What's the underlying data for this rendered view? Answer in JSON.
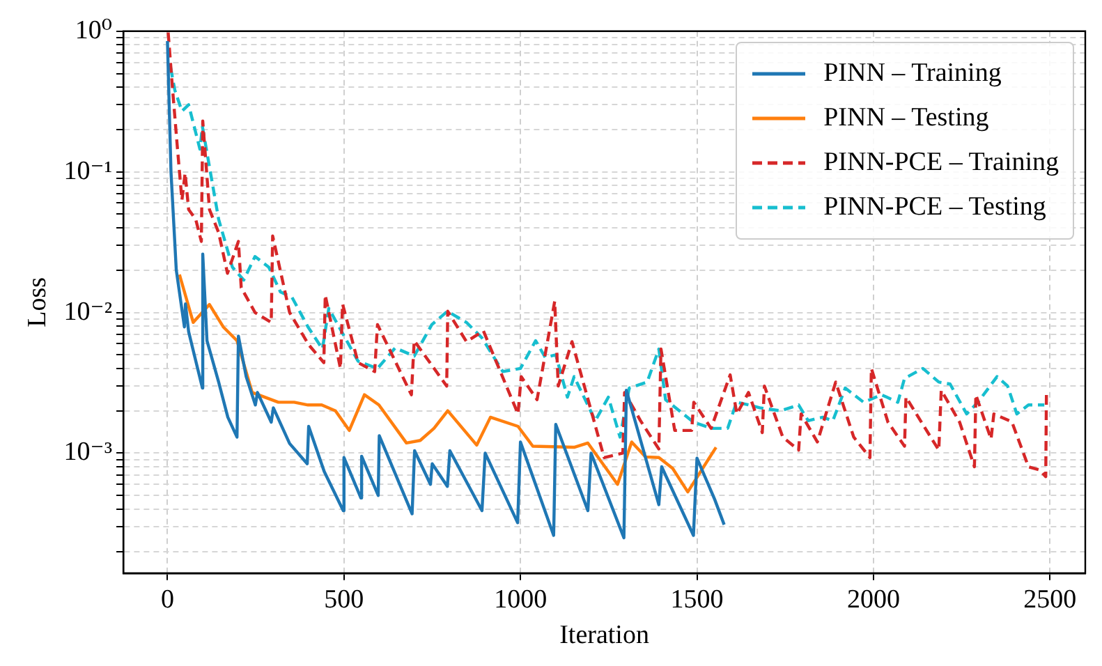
{
  "chart_data": {
    "type": "line",
    "xlabel": "Iteration",
    "ylabel": "Loss",
    "log": "y",
    "grid": true,
    "legend": "top right",
    "xlim": [
      -125,
      2600
    ],
    "xticks": [
      0,
      500,
      1000,
      1500,
      2000,
      2500
    ],
    "ylim": [
      0.00014,
      1
    ],
    "yticks": [
      {
        "value": 1,
        "label": "10⁰"
      },
      {
        "value": 0.1,
        "label": "10⁻¹"
      },
      {
        "value": 0.01,
        "label": "10⁻²"
      },
      {
        "value": 0.001,
        "label": "10⁻³"
      },
      {
        "value": 0.9,
        "label": null
      },
      {
        "value": 0.8,
        "label": null
      },
      {
        "value": 0.7,
        "label": null
      },
      {
        "value": 0.6,
        "label": null
      },
      {
        "value": 0.5,
        "label": null
      },
      {
        "value": 0.4,
        "label": null
      },
      {
        "value": 0.3,
        "label": null
      },
      {
        "value": 0.2,
        "label": null
      },
      {
        "value": 0.09,
        "label": null
      },
      {
        "value": 0.08,
        "label": null
      },
      {
        "value": 0.07,
        "label": null
      },
      {
        "value": 0.06,
        "label": null
      },
      {
        "value": 0.05,
        "label": null
      },
      {
        "value": 0.04,
        "label": null
      },
      {
        "value": 0.03,
        "label": null
      },
      {
        "value": 0.02,
        "label": null
      },
      {
        "value": 0.009,
        "label": null
      },
      {
        "value": 0.008,
        "label": null
      },
      {
        "value": 0.007,
        "label": null
      },
      {
        "value": 0.006,
        "label": null
      },
      {
        "value": 0.005,
        "label": null
      },
      {
        "value": 0.004,
        "label": null
      },
      {
        "value": 0.003,
        "label": null
      },
      {
        "value": 0.002,
        "label": null
      },
      {
        "value": 0.0009,
        "label": null
      },
      {
        "value": 0.0008,
        "label": null
      },
      {
        "value": 0.0007,
        "label": null
      },
      {
        "value": 0.0006,
        "label": null
      },
      {
        "value": 0.0005,
        "label": null
      },
      {
        "value": 0.0004,
        "label": null
      },
      {
        "value": 0.0003,
        "label": null
      },
      {
        "value": 0.0002,
        "label": null
      }
    ],
    "series": [
      {
        "name": "PINN – Training",
        "color": "#1f77b4",
        "line_style": "solid",
        "x": [
          0,
          10,
          25,
          48,
          51,
          60,
          99,
          100,
          112,
          145,
          171,
          197,
          201,
          223,
          249,
          255,
          294,
          300,
          346,
          396,
          400,
          444,
          498,
          500,
          548,
          550,
          597,
          600,
          693,
          700,
          745,
          750,
          793,
          800,
          891,
          900,
          992,
          1000,
          1094,
          1100,
          1191,
          1200,
          1293,
          1300,
          1392,
          1400,
          1490,
          1500,
          1550,
          1577
        ],
        "values": [
          0.85,
          0.1,
          0.02,
          0.0079,
          0.0115,
          0.0073,
          0.0029,
          0.026,
          0.0063,
          0.0032,
          0.0018,
          0.0013,
          0.0068,
          0.0035,
          0.0022,
          0.0027,
          0.00166,
          0.0021,
          0.00117,
          0.00084,
          0.00155,
          0.00074,
          0.00039,
          0.00093,
          0.00048,
          0.00095,
          0.0005,
          0.00133,
          0.00037,
          0.00104,
          0.0006,
          0.00084,
          0.00058,
          0.00104,
          0.00039,
          0.001,
          0.00032,
          0.0012,
          0.00026,
          0.0016,
          0.00039,
          0.001,
          0.00025,
          0.0028,
          0.00043,
          0.0008,
          0.00026,
          0.00092,
          0.00047,
          0.00031
        ]
      },
      {
        "name": "PINN – Testing",
        "color": "#ff7f0e",
        "line_style": "solid",
        "x": [
          34,
          73,
          119,
          158,
          197,
          240,
          314,
          359,
          398,
          437,
          476,
          515,
          558,
          599,
          677,
          716,
          755,
          794,
          876,
          915,
          993,
          1035,
          1152,
          1191,
          1275,
          1315,
          1354,
          1392,
          1431,
          1474,
          1554
        ],
        "values": [
          0.0186,
          0.0085,
          0.0114,
          0.0079,
          0.0063,
          0.0027,
          0.0023,
          0.0023,
          0.0022,
          0.0022,
          0.002,
          0.00145,
          0.0026,
          0.0022,
          0.00118,
          0.00123,
          0.0015,
          0.002,
          0.00114,
          0.0018,
          0.00155,
          0.00112,
          0.0011,
          0.00118,
          0.0006,
          0.0012,
          0.00094,
          0.00093,
          0.00078,
          0.00053,
          0.0011
        ]
      },
      {
        "name": "PINN-PCE – Training",
        "color": "#d62728",
        "line_style": "dashed",
        "x": [
          2,
          14,
          28,
          41,
          50,
          60,
          80,
          96,
          100,
          119,
          145,
          170,
          201,
          209,
          248,
          294,
          298,
          346,
          400,
          443,
          447,
          490,
          496,
          540,
          587,
          595,
          691,
          699,
          791,
          794,
          847,
          895,
          993,
          1002,
          1047,
          1097,
          1107,
          1146,
          1237,
          1290,
          1295,
          1340,
          1392,
          1398,
          1437,
          1485,
          1491,
          1540,
          1594,
          1613,
          1646,
          1685,
          1691,
          1743,
          1788,
          1795,
          1841,
          1893,
          1944,
          1990,
          1994,
          2041,
          2088,
          2092,
          2185,
          2192,
          2244,
          2286,
          2290,
          2333,
          2341,
          2392,
          2439,
          2470,
          2488,
          2490
        ],
        "values": [
          0.98,
          0.4,
          0.15,
          0.063,
          0.098,
          0.054,
          0.046,
          0.032,
          0.23,
          0.054,
          0.037,
          0.019,
          0.032,
          0.015,
          0.01,
          0.0085,
          0.035,
          0.01,
          0.0059,
          0.0044,
          0.0133,
          0.004,
          0.0115,
          0.0044,
          0.0038,
          0.0082,
          0.0026,
          0.0063,
          0.003,
          0.0102,
          0.0062,
          0.0074,
          0.0019,
          0.0035,
          0.0024,
          0.012,
          0.003,
          0.0062,
          0.00093,
          0.001,
          0.0027,
          0.0017,
          0.00107,
          0.0055,
          0.00145,
          0.00145,
          0.0023,
          0.0015,
          0.0036,
          0.0019,
          0.0027,
          0.0014,
          0.003,
          0.0013,
          0.00105,
          0.0019,
          0.0012,
          0.0032,
          0.0013,
          0.00093,
          0.004,
          0.00166,
          0.00112,
          0.0025,
          0.00105,
          0.0028,
          0.00166,
          0.0008,
          0.0026,
          0.00126,
          0.0019,
          0.00167,
          0.0008,
          0.00076,
          0.00068,
          0.0028
        ]
      },
      {
        "name": "PINN-PCE – Testing",
        "color": "#17becf",
        "line_style": "dashed",
        "x": [
          9,
          21,
          41,
          60,
          92,
          99,
          145,
          184,
          216,
          248,
          287,
          320,
          353,
          398,
          439,
          457,
          540,
          595,
          645,
          699,
          749,
          793,
          847,
          891,
          950,
          1000,
          1043,
          1070,
          1100,
          1133,
          1152,
          1212,
          1249,
          1282,
          1308,
          1359,
          1392,
          1411,
          1490,
          1542,
          1587,
          1612,
          1647,
          1678,
          1737,
          1788,
          1815,
          1856,
          1885,
          1920,
          1972,
          2023,
          2069,
          2088,
          2140,
          2185,
          2217,
          2264,
          2296,
          2350,
          2380,
          2406,
          2439,
          2484
        ],
        "values": [
          0.55,
          0.38,
          0.27,
          0.3,
          0.145,
          0.21,
          0.046,
          0.021,
          0.017,
          0.025,
          0.021,
          0.014,
          0.0128,
          0.0079,
          0.0055,
          0.0107,
          0.0045,
          0.004,
          0.0056,
          0.0049,
          0.0082,
          0.0102,
          0.0085,
          0.0066,
          0.0038,
          0.004,
          0.0063,
          0.0048,
          0.005,
          0.0025,
          0.0035,
          0.0017,
          0.0025,
          0.0013,
          0.0029,
          0.0032,
          0.0055,
          0.0024,
          0.00166,
          0.0015,
          0.0015,
          0.0023,
          0.0022,
          0.0021,
          0.002,
          0.0022,
          0.0017,
          0.0018,
          0.0017,
          0.0029,
          0.0023,
          0.0026,
          0.0023,
          0.0034,
          0.004,
          0.0032,
          0.0031,
          0.0019,
          0.0023,
          0.0035,
          0.003,
          0.0019,
          0.0022,
          0.0022
        ]
      }
    ]
  }
}
